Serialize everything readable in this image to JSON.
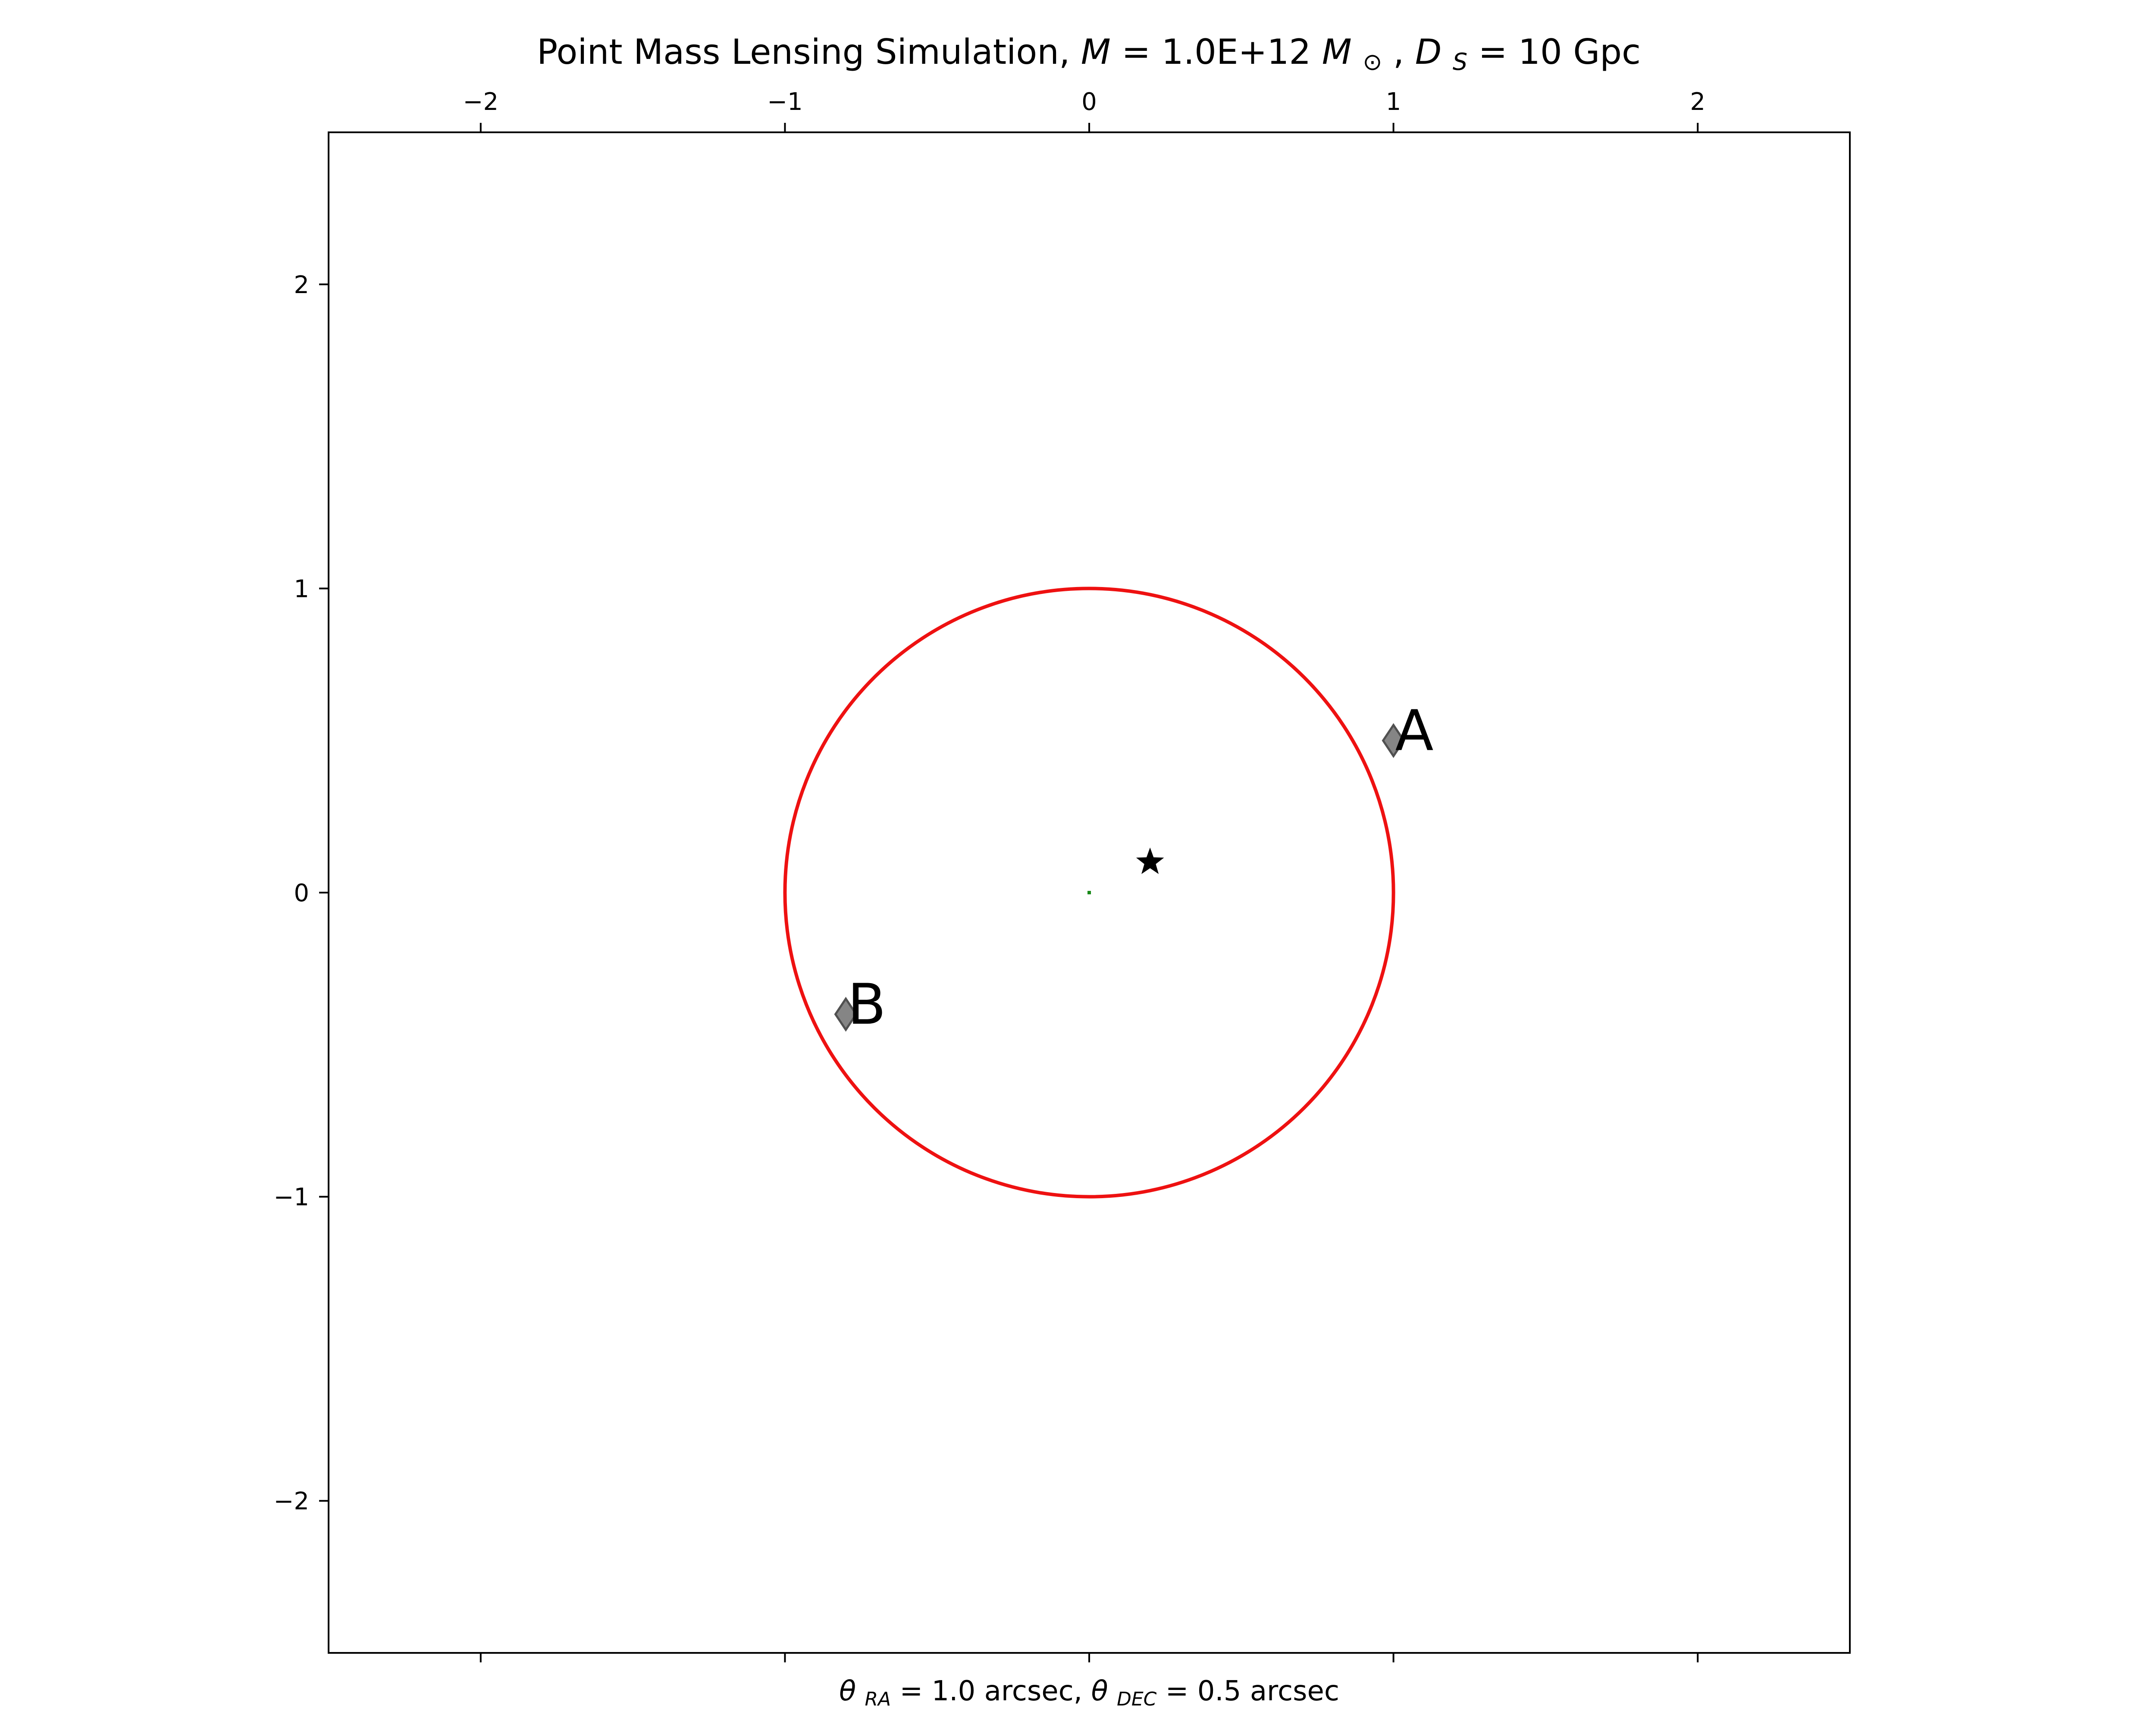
{
  "chart_data": {
    "type": "scatter",
    "title": {
      "prefix": "Point Mass Lensing Simulation, ",
      "mass_symbol": "M",
      "mass_equals": " = 1.0E+12 ",
      "mass_unit": "M",
      "mass_unit_sub": "⊙",
      "sep": ", ",
      "dist_symbol": "D",
      "dist_sub": "S",
      "dist_equals": " = 10 Gpc"
    },
    "xlabel": {
      "theta": "θ",
      "ra_sub": "RA",
      "ra_value": " = 1.0 arcsec, ",
      "dec_sub": "DEC",
      "dec_value": " = 0.5 arcsec"
    },
    "ylabel": "",
    "xlim": [
      -2.5,
      2.5
    ],
    "ylim": [
      -2.5,
      2.5
    ],
    "x_ticks": [
      -2,
      -1,
      0,
      1,
      2
    ],
    "y_ticks": [
      -2,
      -1,
      0,
      1,
      2
    ],
    "x_tick_labels": [
      "−2",
      "−1",
      "0",
      "1",
      "2"
    ],
    "y_tick_labels": [
      "−2",
      "−1",
      "0",
      "1",
      "2"
    ],
    "x_ticks_on_top_axis": true,
    "grid": false,
    "legend": "none",
    "einstein_ring": {
      "center": [
        0,
        0
      ],
      "radius": 1.0,
      "color": "#ee1111"
    },
    "lens": {
      "x": 0,
      "y": 0,
      "marker": "point",
      "color": "#1a8a1a"
    },
    "source": {
      "x": 0.2,
      "y": 0.1,
      "marker": "star",
      "color": "#000000"
    },
    "images": [
      {
        "label": "A",
        "x": 1.0,
        "y": 0.5,
        "marker": "diamond",
        "color": "#707070"
      },
      {
        "label": "B",
        "x": -0.8,
        "y": -0.4,
        "marker": "diamond",
        "color": "#707070"
      }
    ]
  }
}
